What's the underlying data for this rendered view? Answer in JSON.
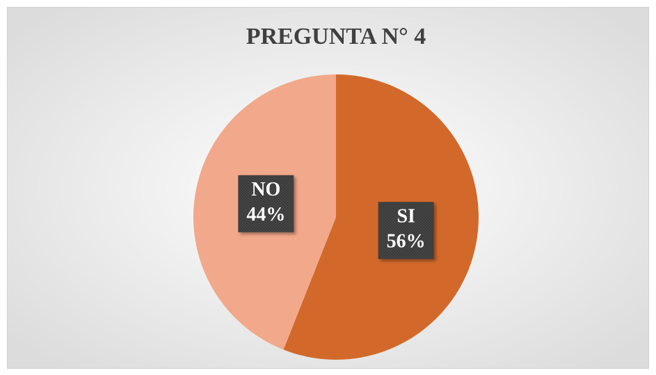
{
  "chart_data": {
    "type": "pie",
    "title": "PREGUNTA N° 4",
    "categories": [
      "SI",
      "NO"
    ],
    "values": [
      56,
      44
    ],
    "value_labels": [
      "56%",
      "44%"
    ],
    "colors": [
      "#d2692a",
      "#f2a88a"
    ]
  }
}
